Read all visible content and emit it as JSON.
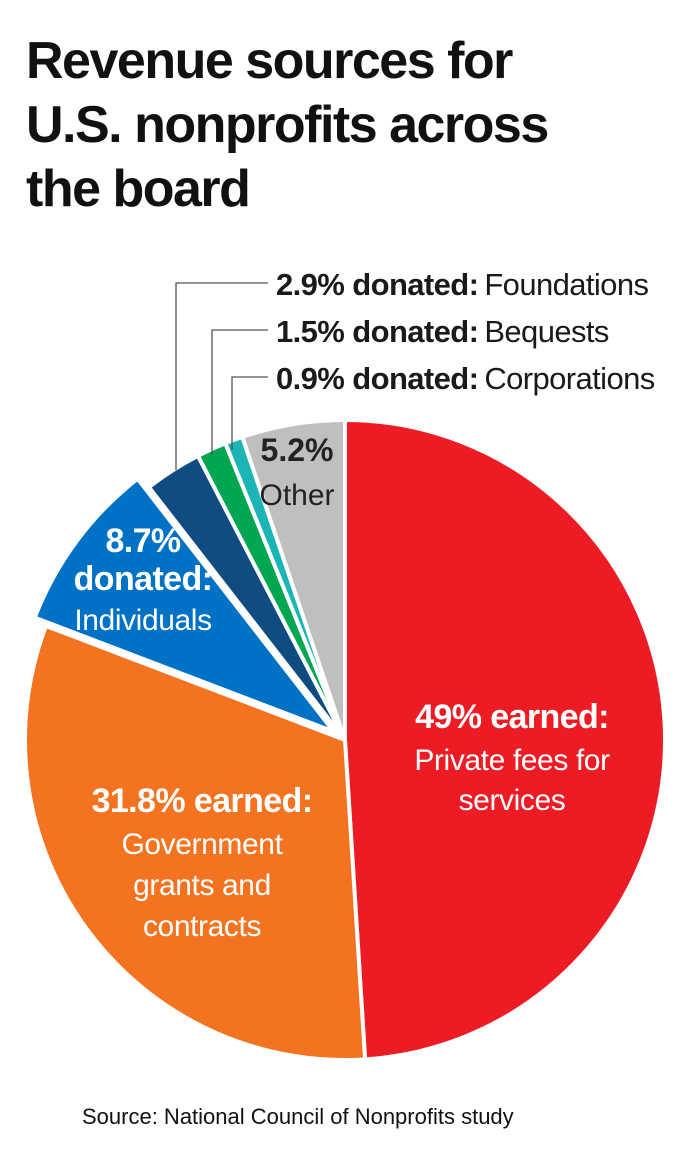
{
  "chart_data": {
    "type": "pie",
    "title_lines": [
      "Revenue sources for",
      "U.S. nonprofits across",
      "the board"
    ],
    "source": "Source: National Council of Nonprofits study",
    "slices": [
      {
        "key": "private-fees",
        "value": 49,
        "color": "#ED1C24",
        "label_bold": "49% earned:",
        "label_lines": [
          "Private fees for",
          "services"
        ]
      },
      {
        "key": "government",
        "value": 31.8,
        "color": "#F37321",
        "label_bold": "31.8% earned:",
        "label_lines": [
          "Government",
          "grants and",
          "contracts"
        ]
      },
      {
        "key": "individuals",
        "value": 8.7,
        "color": "#0072C6",
        "label_bold_lines": [
          "8.7%",
          "donated:"
        ],
        "label_lines": [
          "Individuals"
        ]
      },
      {
        "key": "foundations",
        "value": 2.9,
        "color": "#0F4C81",
        "callout_bold": "2.9% donated:",
        "callout_reg": "Foundations"
      },
      {
        "key": "bequests",
        "value": 1.5,
        "color": "#00A651",
        "callout_bold": "1.5% donated:",
        "callout_reg": "Bequests"
      },
      {
        "key": "corporations",
        "value": 0.9,
        "color": "#1CB5B5",
        "callout_bold": "0.9% donated:",
        "callout_reg": "Corporations"
      },
      {
        "key": "other",
        "value": 5.2,
        "color": "#BFBFBF",
        "label_bold": "5.2%",
        "label_lines": [
          "Other"
        ]
      }
    ]
  }
}
